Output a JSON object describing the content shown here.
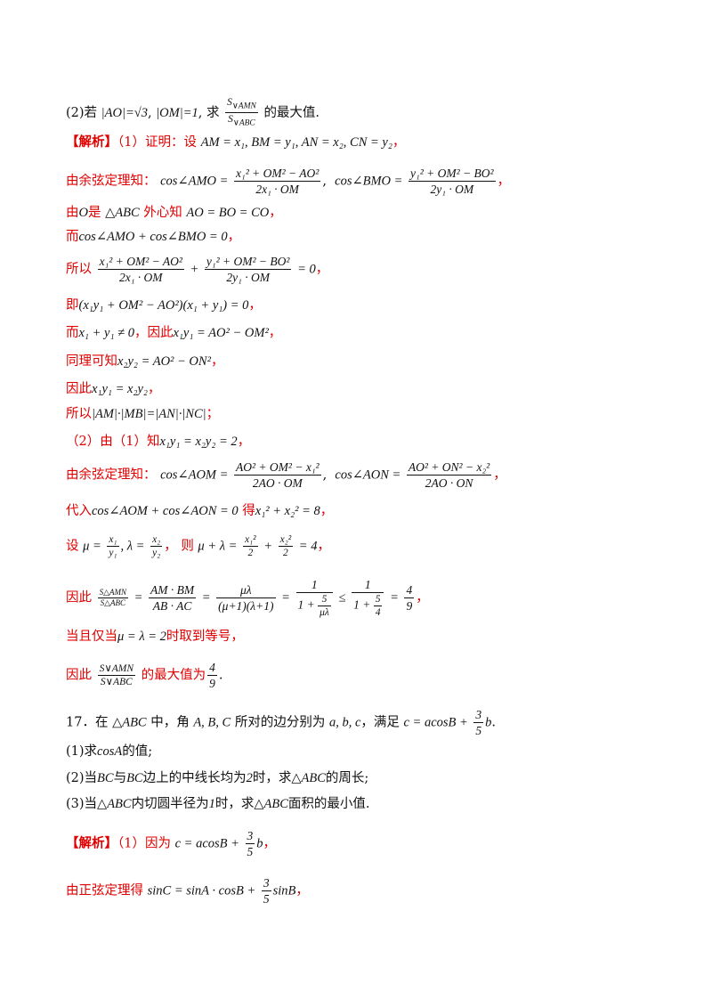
{
  "p2_label": "(2)若",
  "p2_c1": "|AO|=√3",
  "p2_c2": "|OM|=1",
  "p2_ask": "求",
  "p2_frac_num": "S",
  "p2_frac_num_sub": "∨AMN",
  "p2_frac_den": "S",
  "p2_frac_den_sub": "∨ABC",
  "p2_tail": "的最大值.",
  "sol_tag": "【解析】",
  "l1_red": "（1）证明：设",
  "l1_math": "AM = x₁, BM = y₁, AN = x₂, CN = y₂",
  "l2_red": "由余弦定理知：",
  "l2_lhs1": "cos∠AMO =",
  "l2_num1": "x₁² + OM² − AO²",
  "l2_den1": "2x₁ · OM",
  "l2_lhs2": "cos∠BMO =",
  "l2_num2": "y₁² + OM² − BO²",
  "l2_den2": "2y₁ · OM",
  "l3_red1": "由",
  "l3_o": "O",
  "l3_red2": "是",
  "l3_abc": "△ABC",
  "l3_red3": "外心知",
  "l3_math": "AO = BO = CO",
  "l4_red": "而",
  "l4_math": "cos∠AMO + cos∠BMO = 0",
  "l5_red": "所以",
  "l5_num1": "x₁² + OM² − AO²",
  "l5_den1": "2x₁ · OM",
  "l5_plus": "+",
  "l5_num2": "y₁² + OM² − BO²",
  "l5_den2": "2y₁ · OM",
  "l5_eq": "= 0",
  "l6_red": "即",
  "l6_math": "(x₁y₁ + OM² − AO²)(x₁ + y₁) = 0",
  "l7_red1": "而",
  "l7_math1": "x₁ + y₁ ≠ 0",
  "l7_red2": "因此",
  "l7_math2": "x₁y₁ = AO² − OM²",
  "l8_red": "同理可知",
  "l8_math": "x₂y₂ = AO² − ON²",
  "l9_red": "因此",
  "l9_math": "x₁y₁ = x₂y₂",
  "l10_red": "所以",
  "l10_math": "|AM|·|MB|=|AN|·|NC|",
  "l10_tail": "；",
  "l11_red1": "（2）由（1）知",
  "l11_math": "x₁y₁ = x₂y₂ = 2",
  "l12_red": "由余弦定理知：",
  "l12_lhs1": "cos∠AOM =",
  "l12_num1": "AO² + OM² − x₁²",
  "l12_den1": "2AO · OM",
  "l12_lhs2": "cos∠AON =",
  "l12_num2": "AO² + ON² − x₂²",
  "l12_den2": "2AO · ON",
  "l13_red1": "代入",
  "l13_math1": "cos∠AOM + cos∠AON = 0",
  "l13_red2": "得",
  "l13_math2": "x₁² + x₂² = 8",
  "l14_red1": "设",
  "l14_mu": "μ =",
  "l14_f1n": "x₁",
  "l14_f1d": "y₁",
  "l14_lam": ", λ =",
  "l14_f2n": "x₂",
  "l14_f2d": "y₂",
  "l14_red2": "则",
  "l14_sum": "μ + λ =",
  "l14_f3n": "x₁²",
  "l14_f3d": "2",
  "l14_plus": "+",
  "l14_f4n": "x₂²",
  "l14_f4d": "2",
  "l14_eq": "= 4",
  "l15_red": "因此",
  "l15_f1n": "S△AMN",
  "l15_f1d": "S△ABC",
  "l15_eq1": "=",
  "l15_f2n": "AM · BM",
  "l15_f2d": "AB · AC",
  "l15_eq2": "=",
  "l15_f3n": "μλ",
  "l15_f3d": "(μ+1)(λ+1)",
  "l15_eq3": "=",
  "l15_f4n": "1",
  "l15_f4d_pre": "1 +",
  "l15_f4d_n": "5",
  "l15_f4d_d": "μλ",
  "l15_le": "≤",
  "l15_f5n": "1",
  "l15_f5d_pre": "1 +",
  "l15_f5d_n": "5",
  "l15_f5d_d": "4",
  "l15_eq4": "=",
  "l15_f6n": "4",
  "l15_f6d": "9",
  "l16_red1": "当且仅当",
  "l16_math": "μ = λ = 2",
  "l16_red2": "时取到等号",
  "l17_red1": "因此",
  "l17_fn": "S∨AMN",
  "l17_fd": "S∨ABC",
  "l17_red2": "的最大值为",
  "l17_rn": "4",
  "l17_rd": "9",
  "q17_num": "17．在",
  "q17_abc": "△ABC",
  "q17_t1": "中，角",
  "q17_angles": "A, B, C",
  "q17_t2": "所对的边分别为",
  "q17_sides": "a, b, c",
  "q17_t3": "，满足",
  "q17_eq": "c = acosB +",
  "q17_fn": "3",
  "q17_fd": "5",
  "q17_b": "b",
  "q17_1a": "(1)求",
  "q17_1m": "cosA",
  "q17_1b": "的值;",
  "q17_2a": "(2)当",
  "q17_2m1": "BC",
  "q17_2b": "与",
  "q17_2m2": "BC",
  "q17_2c": "边上的中线长均为",
  "q17_2m3": "2",
  "q17_2d": "时，求",
  "q17_2m4": "△ABC",
  "q17_2e": "的周长;",
  "q17_3a": "(3)当",
  "q17_3m1": "△ABC",
  "q17_3b": "内切圆半径为",
  "q17_3m2": "1",
  "q17_3c": "时，求",
  "q17_3m3": "△ABC",
  "q17_3d": "面积的最小值.",
  "s17_tag": "【解析】",
  "s17_red": "（1）因为",
  "s17_eq": "c = acosB +",
  "s17_fn": "3",
  "s17_fd": "5",
  "s17_b": "b",
  "s17_l2_red": "由正弦定理得",
  "s17_l2_eq": "sinC = sinA · cosB +",
  "s17_l2_fn": "3",
  "s17_l2_fd": "5",
  "s17_l2_tail": "sinB",
  "comma": "，",
  "comma_r": "，",
  "period": "."
}
